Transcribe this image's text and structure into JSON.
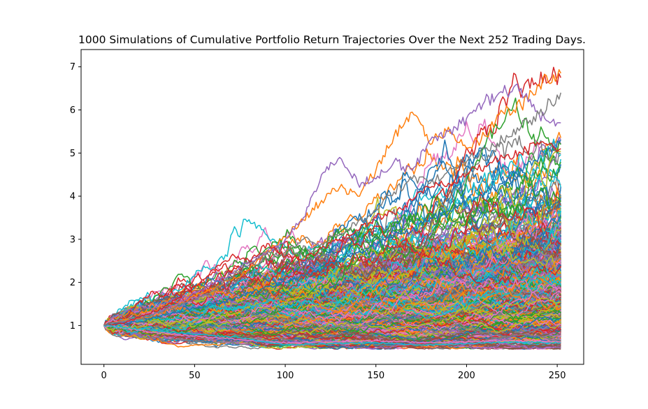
{
  "chart_data": {
    "type": "line",
    "title": "1000 Simulations of Cumulative Portfolio Return Trajectories Over the Next 252 Trading Days.",
    "xlabel": "",
    "ylabel": "",
    "xlim": [
      -12.6,
      264.6
    ],
    "ylim": [
      0.1,
      7.4
    ],
    "x_ticks": [
      0,
      50,
      100,
      150,
      200,
      250
    ],
    "y_ticks": [
      1,
      2,
      3,
      4,
      5,
      6,
      7
    ],
    "grid": false,
    "legend": "none",
    "num_simulations": 1000,
    "num_trading_days": 252,
    "start_value": 1.0,
    "color_cycle": [
      "#1f77b4",
      "#ff7f0e",
      "#2ca02c",
      "#d62728",
      "#9467bd",
      "#8c564b",
      "#e377c2",
      "#7f7f7f",
      "#bcbd22",
      "#17becf"
    ],
    "series": [
      {
        "x": [
          0,
          10,
          20,
          30,
          40,
          50,
          60,
          70,
          80,
          90,
          100,
          110,
          120,
          130,
          140,
          150,
          160,
          170,
          180,
          190,
          200,
          210,
          220,
          230,
          240,
          252
        ],
        "values": [
          1.0,
          1.12,
          1.15,
          1.25,
          1.45,
          1.7,
          1.85,
          2.05,
          2.3,
          2.75,
          3.05,
          3.45,
          3.9,
          4.2,
          4.0,
          4.6,
          5.4,
          5.95,
          5.2,
          5.6,
          5.1,
          5.4,
          5.95,
          6.1,
          6.6,
          6.85
        ]
      },
      {
        "x": [
          0,
          10,
          20,
          30,
          40,
          50,
          60,
          70,
          80,
          90,
          100,
          110,
          120,
          130,
          140,
          150,
          160,
          170,
          180,
          190,
          200,
          210,
          220,
          230,
          240,
          252
        ],
        "values": [
          1.0,
          1.08,
          1.2,
          1.3,
          1.5,
          1.75,
          1.95,
          2.2,
          2.5,
          2.7,
          3.0,
          3.5,
          4.5,
          4.9,
          4.3,
          4.4,
          4.8,
          4.6,
          5.3,
          5.5,
          5.8,
          6.2,
          6.4,
          6.5,
          5.9,
          5.7
        ]
      },
      {
        "x": [
          0,
          10,
          20,
          30,
          40,
          50,
          60,
          70,
          80,
          90,
          100,
          110,
          120,
          130,
          140,
          150,
          160,
          170,
          180,
          190,
          200,
          210,
          220,
          230,
          240,
          252
        ],
        "values": [
          1.0,
          1.1,
          1.15,
          1.3,
          1.45,
          1.6,
          1.8,
          2.1,
          2.4,
          2.55,
          2.7,
          3.0,
          2.9,
          3.1,
          3.4,
          3.7,
          4.1,
          4.4,
          4.3,
          4.6,
          4.8,
          5.1,
          5.3,
          5.6,
          5.9,
          6.4
        ]
      },
      {
        "x": [
          0,
          10,
          20,
          30,
          40,
          50,
          60,
          70,
          80,
          90,
          100,
          110,
          120,
          130,
          140,
          150,
          160,
          170,
          180,
          190,
          200,
          210,
          220,
          230,
          240,
          252
        ],
        "values": [
          1.0,
          1.05,
          1.1,
          1.2,
          1.3,
          1.4,
          1.5,
          1.6,
          1.75,
          1.9,
          2.0,
          2.15,
          2.3,
          2.5,
          2.7,
          2.9,
          3.1,
          3.2,
          3.5,
          3.6,
          3.9,
          4.1,
          4.3,
          4.6,
          4.9,
          5.3
        ]
      },
      {
        "x": [
          0,
          10,
          20,
          30,
          40,
          50,
          60,
          70,
          80,
          90,
          100,
          110,
          120,
          130,
          140,
          150,
          160,
          170,
          180,
          190,
          200,
          210,
          220,
          230,
          240,
          252
        ],
        "values": [
          1.0,
          1.05,
          1.2,
          1.35,
          1.6,
          1.9,
          2.3,
          2.6,
          2.5,
          2.9,
          2.6,
          2.5,
          2.8,
          3.0,
          3.2,
          3.5,
          3.6,
          3.9,
          4.2,
          4.3,
          4.5,
          4.7,
          4.9,
          5.0,
          5.2,
          5.1
        ]
      },
      {
        "x": [
          0,
          25,
          50,
          75,
          100,
          125,
          150,
          175,
          200,
          225,
          252
        ],
        "values": [
          1.0,
          0.85,
          0.75,
          0.68,
          0.6,
          0.62,
          0.65,
          0.6,
          0.62,
          0.65,
          0.62
        ]
      },
      {
        "x": [
          0,
          25,
          50,
          75,
          100,
          125,
          150,
          175,
          200,
          225,
          252
        ],
        "values": [
          1.0,
          0.9,
          0.8,
          0.72,
          0.55,
          0.58,
          0.6,
          0.55,
          0.58,
          0.62,
          0.6
        ]
      }
    ]
  }
}
